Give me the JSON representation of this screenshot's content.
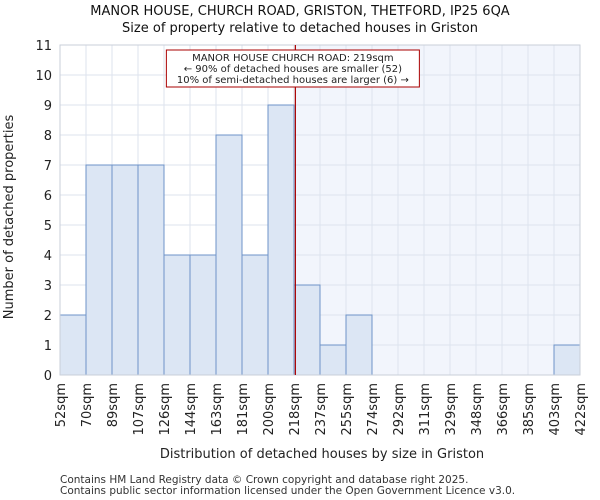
{
  "title": "MANOR HOUSE, CHURCH ROAD, GRISTON, THETFORD, IP25 6QA",
  "subtitle": "Size of property relative to detached houses in Griston",
  "footer": {
    "line1": "Contains HM Land Registry data © Crown copyright and database right 2025.",
    "line2": "Contains public sector information licensed under the Open Government Licence v3.0."
  },
  "chart_data": {
    "type": "bar",
    "title": "MANOR HOUSE, CHURCH ROAD, GRISTON, THETFORD, IP25 6QA",
    "subtitle": "Size of property relative to detached houses in Griston",
    "xlabel": "Distribution of detached houses by size in Griston",
    "ylabel": "Number of detached properties",
    "bin_edges": [
      "52sqm",
      "70sqm",
      "89sqm",
      "107sqm",
      "126sqm",
      "144sqm",
      "163sqm",
      "181sqm",
      "200sqm",
      "218sqm",
      "237sqm",
      "255sqm",
      "274sqm",
      "292sqm",
      "311sqm",
      "329sqm",
      "348sqm",
      "366sqm",
      "385sqm",
      "403sqm",
      "422sqm"
    ],
    "values": [
      2,
      7,
      7,
      7,
      4,
      4,
      8,
      4,
      9,
      3,
      1,
      2,
      0,
      0,
      0,
      0,
      0,
      0,
      0,
      1
    ],
    "ylim": [
      0,
      11
    ],
    "yticks": [
      0,
      1,
      2,
      3,
      4,
      5,
      6,
      7,
      8,
      9,
      10,
      11
    ],
    "grid": true,
    "marker": {
      "value_sqm": 219,
      "color": "#aa0000",
      "lines": [
        "MANOR HOUSE CHURCH ROAD: 219sqm",
        "← 90% of detached houses are smaller (52)",
        "10% of semi-detached houses are larger (6) →"
      ]
    },
    "colors": {
      "bar_fill": "#dce6f4",
      "bar_edge": "#6e93c8",
      "shade": "#f2f5fc",
      "grid": "#dde3ee"
    }
  }
}
